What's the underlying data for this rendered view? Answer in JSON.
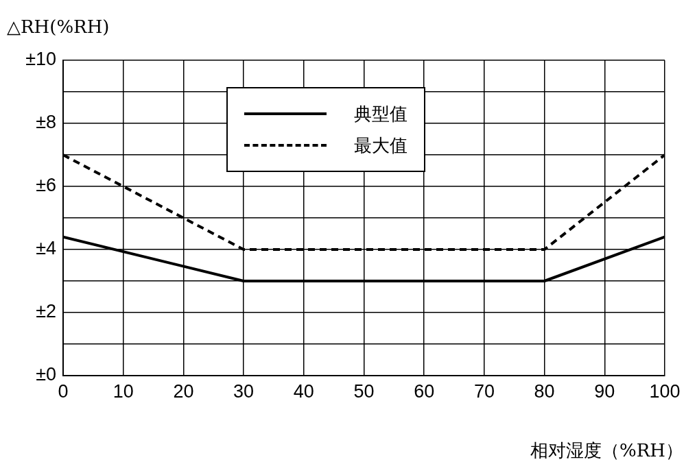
{
  "chart_data": {
    "type": "line",
    "xlabel": "相对湿度（%RH）",
    "ylabel": "△RH(%RH)",
    "x": [
      0,
      30,
      80,
      100
    ],
    "series": [
      {
        "name": "典型值",
        "color": "#000000",
        "line_style": "solid",
        "values": [
          4.4,
          3,
          3,
          4.4
        ]
      },
      {
        "name": "最大值",
        "color": "#000000",
        "line_style": "dashed",
        "values": [
          7,
          4,
          4,
          7
        ]
      }
    ],
    "xlim": [
      0,
      100
    ],
    "xticks": [
      0,
      10,
      20,
      30,
      40,
      50,
      60,
      70,
      80,
      90,
      100
    ],
    "ylim": [
      0,
      10
    ],
    "yticks": [
      {
        "value": 0,
        "label": "±0"
      },
      {
        "value": 1,
        "label": null
      },
      {
        "value": 2,
        "label": "±2"
      },
      {
        "value": 3,
        "label": null
      },
      {
        "value": 4,
        "label": "±4"
      },
      {
        "value": 5,
        "label": null
      },
      {
        "value": 6,
        "label": "±6"
      },
      {
        "value": 7,
        "label": null
      },
      {
        "value": 8,
        "label": "±8"
      },
      {
        "value": 9,
        "label": null
      },
      {
        "value": 10,
        "label": "±10"
      }
    ],
    "grid": true,
    "legend": "top",
    "marker": "none"
  }
}
